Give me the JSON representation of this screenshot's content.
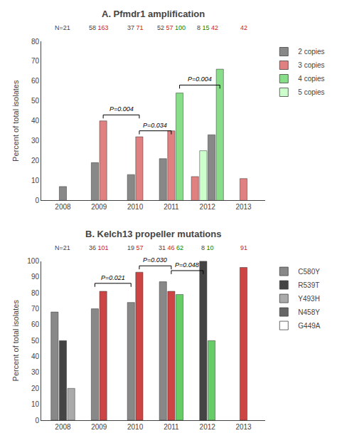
{
  "chart_data": [
    {
      "type": "bar",
      "title": "A. Pfmdr1 amplification",
      "ylabel": "Percent of total isolates",
      "categories": [
        "2008",
        "2009",
        "2010",
        "2011",
        "2012",
        "2013"
      ],
      "ylim": [
        0,
        80
      ],
      "yticks": [
        0,
        10,
        20,
        30,
        40,
        50,
        60,
        70,
        80
      ],
      "grid": false,
      "legend": "right",
      "bars": [
        [
          {
            "value": 7,
            "color": "#888888"
          }
        ],
        [
          {
            "value": 19,
            "color": "#888888"
          },
          {
            "value": 40,
            "color": "#e08080"
          }
        ],
        [
          {
            "value": 13,
            "color": "#888888"
          },
          {
            "value": 32,
            "color": "#e08080"
          }
        ],
        [
          {
            "value": 21,
            "color": "#888888"
          },
          {
            "value": 35,
            "color": "#e08080"
          },
          {
            "value": 54,
            "color": "#88dd88"
          }
        ],
        [
          {
            "value": 12,
            "color": "#e08080"
          },
          {
            "value": 25,
            "color": "#ccffcc"
          },
          {
            "value": 33,
            "color": "#888888"
          },
          {
            "value": 66,
            "color": "#88dd88"
          }
        ],
        [
          {
            "value": 11,
            "color": "#e08080"
          }
        ]
      ],
      "n_labels": [
        [
          {
            "text": "N=21",
            "color": "#444444"
          }
        ],
        [
          {
            "text": "58",
            "color": "#444444"
          },
          {
            "text": "163",
            "color": "#cc2222"
          }
        ],
        [
          {
            "text": "37",
            "color": "#444444"
          },
          {
            "text": "71",
            "color": "#cc2222"
          }
        ],
        [
          {
            "text": "52",
            "color": "#444444"
          },
          {
            "text": "57",
            "color": "#cc2222"
          },
          {
            "text": "100",
            "color": "#008800"
          }
        ],
        [
          {
            "text": "8",
            "color": "#444444"
          },
          {
            "text": "15",
            "color": "#008800"
          },
          {
            "text": "42",
            "color": "#cc2222"
          }
        ],
        [
          {
            "text": "42",
            "color": "#cc2222"
          }
        ]
      ],
      "brackets": [
        {
          "from": {
            "category": "2009",
            "bar": 1
          },
          "to": {
            "category": "2010",
            "bar": 1
          },
          "y": 43,
          "label": "P=0.004"
        },
        {
          "from": {
            "category": "2010",
            "bar": 1
          },
          "to": {
            "category": "2011",
            "bar": 1
          },
          "y": 35,
          "label": "P=0.034"
        },
        {
          "from": {
            "category": "2011",
            "bar": 2
          },
          "to": {
            "category": "2012",
            "bar": 3
          },
          "y": 58,
          "label": "P=0.004"
        }
      ],
      "legend_items": [
        {
          "name": "2 copies",
          "color": "#888888"
        },
        {
          "name": "3 copies",
          "color": "#e08080"
        },
        {
          "name": "4 copies",
          "color": "#88dd88"
        },
        {
          "name": "5 copies",
          "color": "#ccffcc"
        }
      ]
    },
    {
      "type": "bar",
      "title": "B. Kelch13 propeller mutations",
      "ylabel": "Percent of total isolates",
      "categories": [
        "2008",
        "2009",
        "2010",
        "2011",
        "2012",
        "2013"
      ],
      "ylim": [
        0,
        100
      ],
      "yticks": [
        0,
        10,
        20,
        30,
        40,
        50,
        60,
        70,
        80,
        90,
        100
      ],
      "grid": false,
      "legend": "right",
      "bars": [
        [
          {
            "value": 68,
            "color": "#888888"
          },
          {
            "value": 50,
            "color": "#444444"
          },
          {
            "value": 20,
            "color": "#aaaaaa"
          }
        ],
        [
          {
            "value": 70,
            "color": "#888888"
          },
          {
            "value": 81,
            "color": "#cc4444"
          }
        ],
        [
          {
            "value": 74,
            "color": "#888888"
          },
          {
            "value": 93,
            "color": "#cc4444"
          }
        ],
        [
          {
            "value": 87,
            "color": "#888888"
          },
          {
            "value": 81,
            "color": "#cc4444"
          },
          {
            "value": 79,
            "color": "#66cc66"
          }
        ],
        [
          {
            "value": 100,
            "color": "#444444"
          },
          {
            "value": 50,
            "color": "#66cc66"
          }
        ],
        [
          {
            "value": 96,
            "color": "#cc4444"
          }
        ]
      ],
      "n_labels": [
        [
          {
            "text": "N=21",
            "color": "#444444"
          }
        ],
        [
          {
            "text": "36",
            "color": "#444444"
          },
          {
            "text": "101",
            "color": "#cc2222"
          }
        ],
        [
          {
            "text": "19",
            "color": "#444444"
          },
          {
            "text": "57",
            "color": "#cc2222"
          }
        ],
        [
          {
            "text": "31",
            "color": "#444444"
          },
          {
            "text": "46",
            "color": "#cc2222"
          },
          {
            "text": "62",
            "color": "#008800"
          }
        ],
        [
          {
            "text": "8",
            "color": "#444444"
          },
          {
            "text": "10",
            "color": "#008800"
          }
        ],
        [
          {
            "text": "91",
            "color": "#cc2222"
          }
        ]
      ],
      "brackets": [
        {
          "from": {
            "category": "2009",
            "bar": 0
          },
          "to": {
            "category": "2010",
            "bar": 0
          },
          "y": 86,
          "label": "P=0.021"
        },
        {
          "from": {
            "category": "2010",
            "bar": 1
          },
          "to": {
            "category": "2011",
            "bar": 1
          },
          "y": 97,
          "label": "P=0.030"
        },
        {
          "from": {
            "category": "2011",
            "bar": 1
          },
          "to": {
            "category": "2012",
            "bar": 0
          },
          "y": 94,
          "label": "P=0.048"
        }
      ],
      "legend_items": [
        {
          "name": "C580Y",
          "color": "#888888"
        },
        {
          "name": "R539T",
          "color": "#444444"
        },
        {
          "name": "Y493H",
          "color": "#aaaaaa"
        },
        {
          "name": "N458Y",
          "color": "#666666"
        },
        {
          "name": "G449A",
          "color": "#ffffff"
        }
      ]
    }
  ]
}
